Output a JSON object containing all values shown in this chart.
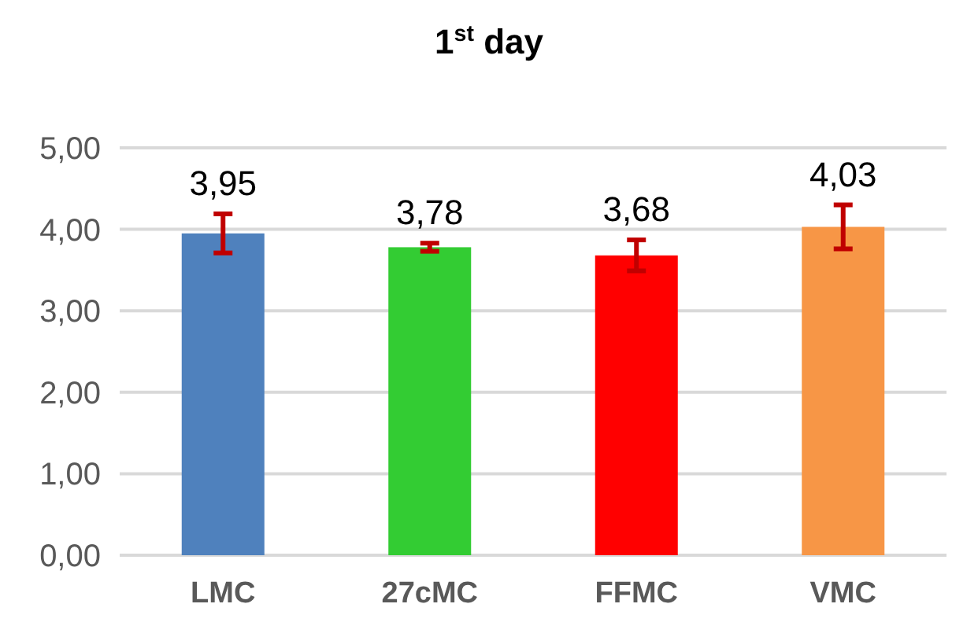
{
  "chart_data": {
    "type": "bar",
    "title": "1$^{st}$ day",
    "categories": [
      "LMC",
      "27cMC",
      "FFMC",
      "VMC"
    ],
    "values": [
      3.95,
      3.78,
      3.68,
      4.03
    ],
    "colors": [
      "#4f81bd",
      "#33cc33",
      "#ff0000",
      "#f79646"
    ],
    "errors": [
      0.24,
      0.05,
      0.19,
      0.27
    ],
    "data_labels": true,
    "value_labels": [
      "3,95",
      "3,78",
      "3,68",
      "4,03"
    ],
    "ylim": [
      0,
      5
    ],
    "yticks": [
      {
        "value": 0,
        "label": "0,00"
      },
      {
        "value": 1,
        "label": "1,00"
      },
      {
        "value": 2,
        "label": "2,00"
      },
      {
        "value": 3,
        "label": "3,00"
      },
      {
        "value": 4,
        "label": "4,00"
      },
      {
        "value": 5,
        "label": "5,00"
      }
    ],
    "grid": "y"
  }
}
